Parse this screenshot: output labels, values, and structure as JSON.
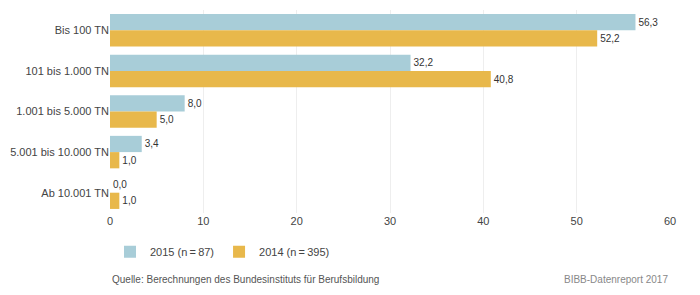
{
  "chart_data": {
    "type": "bar",
    "orientation": "horizontal",
    "categories": [
      "Bis 100 TN",
      "101 bis 1.000 TN",
      "1.001 bis 5.000 TN",
      "5.001 bis 10.000 TN",
      "Ab 10.001 TN"
    ],
    "series": [
      {
        "name": "2015 (n = 87)",
        "color": "#a8cdd8",
        "values": [
          56.3,
          32.2,
          8.0,
          3.4,
          0.0
        ],
        "value_labels": [
          "56,3",
          "32,2",
          "8,0",
          "3,4",
          "0,0"
        ]
      },
      {
        "name": "2014 (n = 395)",
        "color": "#e8b84b",
        "values": [
          52.2,
          40.8,
          5.0,
          1.0,
          1.0
        ],
        "value_labels": [
          "52,2",
          "40,8",
          "5,0",
          "1,0",
          "1,0"
        ]
      }
    ],
    "xlim": [
      0,
      60
    ],
    "xticks": [
      0,
      10,
      20,
      30,
      40,
      50,
      60
    ],
    "grid": true,
    "data_labels": true,
    "legend": "bottom",
    "annotations": [
      "Quelle: Berechnungen des Bundesinstituts für Berufsbildung",
      "BIBB-Datenreport 2017"
    ]
  }
}
